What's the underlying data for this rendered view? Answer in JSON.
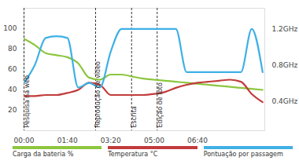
{
  "chart_data": {
    "type": "line",
    "x": [
      0,
      25,
      50,
      75,
      100,
      125,
      150,
      175,
      200,
      225,
      250,
      275,
      300,
      325,
      350,
      375,
      400,
      425,
      450,
      475,
      500,
      525,
      550
    ],
    "xlim": [
      0,
      555
    ],
    "xticks": [
      {
        "value": 0,
        "label": "00:00"
      },
      {
        "value": 100,
        "label": "01:40"
      },
      {
        "value": 200,
        "label": "03:20"
      },
      {
        "value": 300,
        "label": "05:00"
      },
      {
        "value": 400,
        "label": "06:40"
      }
    ],
    "ylim": [
      0,
      120
    ],
    "yticks": [
      20,
      40,
      60,
      80,
      100
    ],
    "y2lim": [
      0.07,
      1.43
    ],
    "y2ticks": [
      {
        "value": 0.4,
        "label": "0.4GHz"
      },
      {
        "value": 0.8,
        "label": "0.8GHz"
      },
      {
        "value": 1.2,
        "label": "1.2GHz"
      }
    ],
    "grid": false,
    "legend": "bottom",
    "series": [
      {
        "name": "Carga da bateria %",
        "color": "#8cc63f",
        "values": [
          90,
          84,
          76,
          74,
          72,
          66,
          52,
          50,
          55,
          55,
          53,
          51,
          50,
          49,
          48,
          47,
          46,
          45,
          44,
          43,
          42,
          41,
          40
        ]
      },
      {
        "name": "Temperatura °C",
        "color": "#c23b3b",
        "values": [
          34,
          34,
          35,
          35,
          37,
          40,
          47,
          45,
          35,
          35,
          35,
          35,
          36,
          38,
          42,
          45,
          47,
          48,
          49,
          50,
          48,
          36,
          28
        ]
      },
      {
        "name": "Pontuação por passagem",
        "color": "#3fb0e6",
        "axis": "y2",
        "values": [
          0.6,
          0.8,
          1.1,
          1.12,
          1.1,
          0.55,
          0.6,
          0.55,
          0.95,
          1.2,
          1.2,
          1.2,
          1.2,
          1.2,
          1.2,
          0.72,
          0.72,
          0.72,
          0.72,
          0.72,
          0.72,
          1.2,
          0.72
        ]
      }
    ],
    "annotations": [
      {
        "x": 0,
        "label": "Pesquisa na web"
      },
      {
        "x": 165,
        "label": "Reprodução de vídeo"
      },
      {
        "x": 248,
        "label": "Escrita"
      },
      {
        "x": 307,
        "label": "Edição de foto"
      }
    ]
  }
}
